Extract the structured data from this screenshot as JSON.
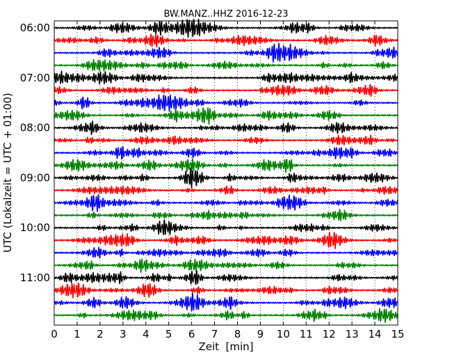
{
  "chart_data": {
    "type": "line",
    "title": "BW.MANZ..HHZ 2016-12-23",
    "xlabel": "Zeit  [min]",
    "ylabel": "UTC (Lokalzeit = UTC + 01:00)",
    "xlim": [
      0,
      15
    ],
    "xticks": [
      "0",
      "1",
      "2",
      "3",
      "4",
      "5",
      "6",
      "7",
      "8",
      "9",
      "10",
      "11",
      "12",
      "13",
      "14",
      "15"
    ],
    "yticks": [
      "06:00",
      "07:00",
      "08:00",
      "09:00",
      "10:00",
      "11:00"
    ],
    "ytick_traces": [
      0,
      4,
      8,
      12,
      16,
      20
    ],
    "trace_count": 24,
    "trace_minutes": 15,
    "trace_colors": [
      "#000000",
      "#ff0000",
      "#0000ff",
      "#008000"
    ],
    "grid": "vertical dotted at each minute"
  }
}
